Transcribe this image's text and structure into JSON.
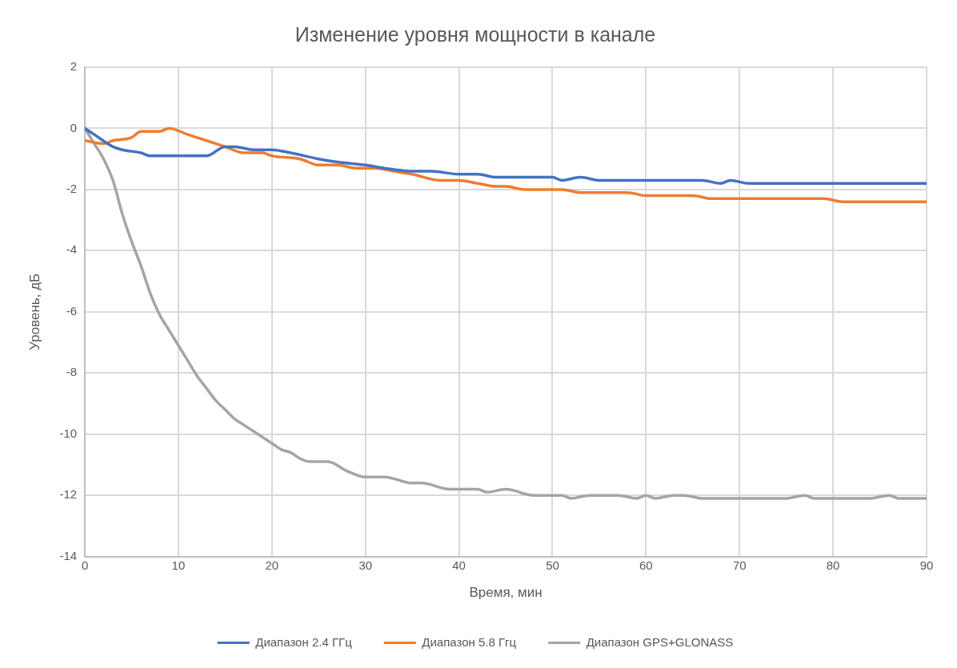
{
  "chart_data": {
    "type": "line",
    "title": "Изменение уровня мощности в канале",
    "xlabel": "Время, мин",
    "ylabel": "Уровень, дБ",
    "xlim": [
      0,
      90
    ],
    "xticks": [
      0,
      10,
      20,
      30,
      40,
      50,
      60,
      70,
      80,
      90
    ],
    "ylim": [
      -14,
      2
    ],
    "yticks": [
      -14,
      -12,
      -10,
      -8,
      -6,
      -4,
      -2,
      0,
      2
    ],
    "grid": true,
    "legend": "bottom",
    "marker": "none",
    "line_style": "solid",
    "series": [
      {
        "name": "Диапазон 2.4 ГГц",
        "color": "#4472c4",
        "x": [
          0,
          1,
          3,
          4,
          6,
          7,
          10,
          12,
          13,
          15,
          16,
          18,
          20,
          22,
          25,
          27,
          30,
          32,
          35,
          37,
          40,
          42,
          44,
          45,
          50,
          51,
          53,
          55,
          60,
          66,
          68,
          69,
          71,
          90
        ],
        "values": [
          0,
          -0.2,
          -0.6,
          -0.7,
          -0.8,
          -0.9,
          -0.9,
          -0.9,
          -0.9,
          -0.6,
          -0.6,
          -0.7,
          -0.7,
          -0.8,
          -1.0,
          -1.1,
          -1.2,
          -1.3,
          -1.4,
          -1.4,
          -1.5,
          -1.5,
          -1.6,
          -1.6,
          -1.6,
          -1.7,
          -1.6,
          -1.7,
          -1.7,
          -1.7,
          -1.8,
          -1.7,
          -1.8,
          -1.8
        ]
      },
      {
        "name": "Диапазон 5.8 Ггц",
        "color": "#ed7d31",
        "x": [
          0,
          2,
          3,
          5,
          6,
          8,
          9,
          11,
          13,
          15,
          17,
          19,
          20,
          23,
          25,
          27,
          29,
          31,
          33,
          35,
          38,
          40,
          42,
          44,
          45,
          47,
          51,
          53,
          58,
          60,
          65,
          67,
          79,
          81,
          90
        ],
        "values": [
          -0.4,
          -0.5,
          -0.4,
          -0.3,
          -0.1,
          -0.1,
          0,
          -0.2,
          -0.4,
          -0.6,
          -0.8,
          -0.8,
          -0.9,
          -1.0,
          -1.2,
          -1.2,
          -1.3,
          -1.3,
          -1.4,
          -1.5,
          -1.7,
          -1.7,
          -1.8,
          -1.9,
          -1.9,
          -2.0,
          -2.0,
          -2.1,
          -2.1,
          -2.2,
          -2.2,
          -2.3,
          -2.3,
          -2.4,
          -2.4
        ]
      },
      {
        "name": "Диапазон GPS+GLONASS",
        "color": "#a5a5a5",
        "x": [
          0,
          1,
          2,
          3,
          4,
          5,
          6,
          7,
          8,
          9,
          10,
          11,
          12,
          13,
          14,
          15,
          16,
          17,
          18,
          19,
          20,
          21,
          22,
          23,
          24,
          26,
          28,
          30,
          32,
          35,
          36,
          39,
          42,
          43,
          45,
          48,
          51,
          52,
          54,
          57,
          59,
          60,
          61,
          63,
          64,
          66,
          75,
          77,
          78,
          84,
          86,
          87,
          90
        ],
        "values": [
          0,
          -0.5,
          -1.0,
          -1.7,
          -2.8,
          -3.7,
          -4.5,
          -5.4,
          -6.1,
          -6.6,
          -7.1,
          -7.6,
          -8.1,
          -8.5,
          -8.9,
          -9.2,
          -9.5,
          -9.7,
          -9.9,
          -10.1,
          -10.3,
          -10.5,
          -10.6,
          -10.8,
          -10.9,
          -10.9,
          -11.2,
          -11.4,
          -11.4,
          -11.6,
          -11.6,
          -11.8,
          -11.8,
          -11.9,
          -11.8,
          -12.0,
          -12.0,
          -12.1,
          -12.0,
          -12.0,
          -12.1,
          -12.0,
          -12.1,
          -12.0,
          -12.0,
          -12.1,
          -12.1,
          -12.0,
          -12.1,
          -12.1,
          -12.0,
          -12.1,
          -12.1
        ]
      }
    ]
  }
}
